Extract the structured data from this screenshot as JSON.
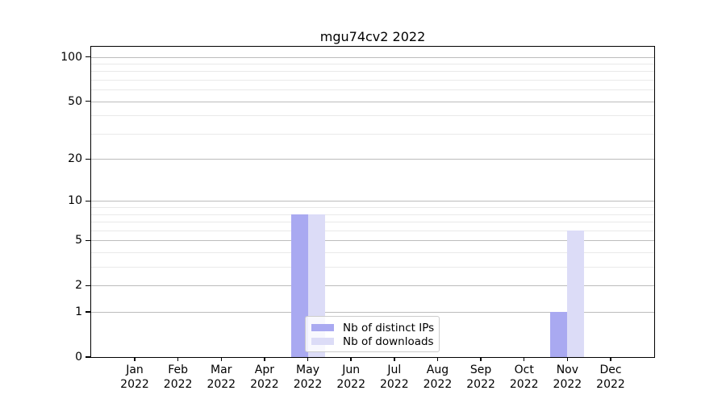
{
  "chart_data": {
    "type": "bar",
    "title": "mgu74cv2 2022",
    "categories": [
      "Jan",
      "Feb",
      "Mar",
      "Apr",
      "May",
      "Jun",
      "Jul",
      "Aug",
      "Sep",
      "Oct",
      "Nov",
      "Dec"
    ],
    "category_year_line": "2022",
    "series": [
      {
        "name": "Nb of distinct IPs",
        "color": "#a9a9f1",
        "values": [
          0,
          0,
          0,
          0,
          8,
          0,
          0,
          0,
          0,
          0,
          1,
          0
        ]
      },
      {
        "name": "Nb of downloads",
        "color": "#dcdcf7",
        "values": [
          0,
          0,
          0,
          0,
          8,
          0,
          0,
          0,
          0,
          0,
          6,
          0
        ]
      }
    ],
    "xlabel": "",
    "ylabel": "",
    "yscale": "log1p",
    "ylim": [
      0,
      117
    ],
    "y_major_ticks": [
      0,
      1,
      2,
      5,
      10,
      20,
      50,
      100
    ],
    "y_minor_ticks": [
      3,
      4,
      6,
      7,
      8,
      9,
      30,
      40,
      60,
      70,
      80,
      90
    ],
    "grid": true,
    "legend_position": "lower center",
    "colors": {
      "grid_major": "#bcbcbc",
      "grid_minor": "#e9e9e9",
      "axis": "#000000",
      "legend_border": "#cccccc"
    }
  }
}
